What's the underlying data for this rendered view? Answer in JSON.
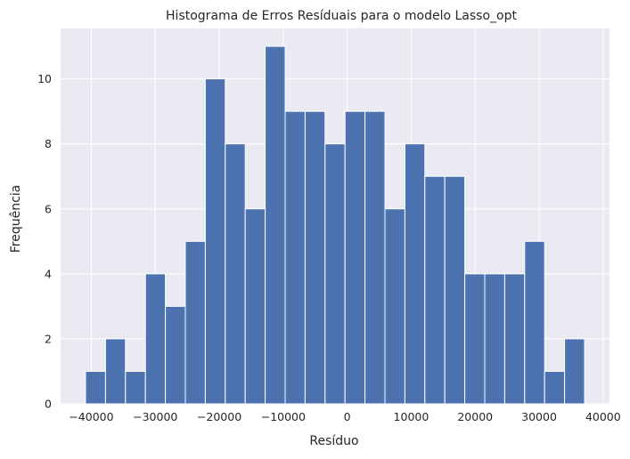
{
  "chart_data": {
    "type": "bar",
    "title": "Histograma de Erros Resíduais para o modelo Lasso_opt",
    "xlabel": "Resíduo",
    "ylabel": "Frequência",
    "bin_start": -40900,
    "bin_width": 3120,
    "counts": [
      1,
      2,
      1,
      4,
      3,
      5,
      10,
      8,
      6,
      11,
      9,
      9,
      8,
      9,
      9,
      6,
      8,
      7,
      7,
      4,
      4,
      4,
      5,
      1,
      2
    ],
    "xlim": [
      -44800,
      41000
    ],
    "ylim": [
      0,
      11.55
    ],
    "xticks": [
      -40000,
      -30000,
      -20000,
      -10000,
      0,
      10000,
      20000,
      30000,
      40000
    ],
    "xtick_labels": [
      "−40000",
      "−30000",
      "−20000",
      "−10000",
      "0",
      "10000",
      "20000",
      "30000",
      "40000"
    ],
    "yticks": [
      0,
      2,
      4,
      6,
      8,
      10
    ],
    "ytick_labels": [
      "0",
      "2",
      "4",
      "6",
      "8",
      "10"
    ],
    "grid": true,
    "colors": {
      "bar": "#4c72b0",
      "background": "#eaeaf2",
      "grid": "#ffffff"
    }
  }
}
